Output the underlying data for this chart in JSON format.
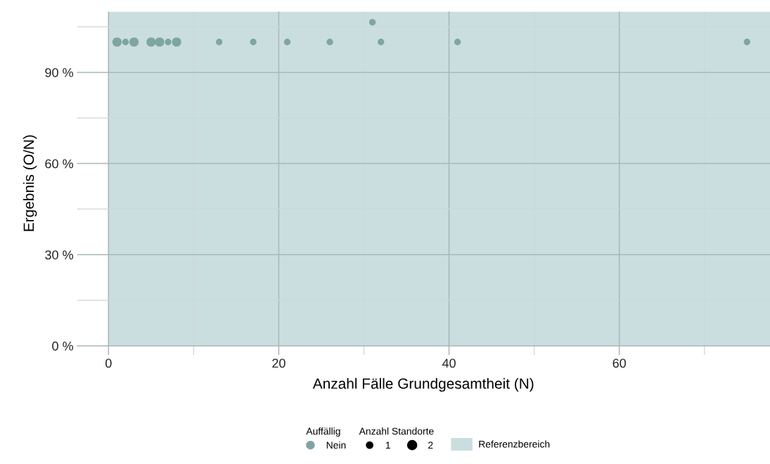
{
  "chart_data": {
    "type": "bubble",
    "xlabel": "Anzahl Fälle Grundgesamtheit (N)",
    "ylabel": "Ergebnis (O/N)",
    "legend_title": "Auffällig",
    "annotations": [
      "Anzahl Standorte"
    ],
    "series": [
      {
        "name": "Nein",
        "color": "#7fa5a3",
        "x": [
          1,
          2,
          3,
          5,
          6,
          7,
          8,
          13,
          17,
          21,
          26,
          31,
          32,
          41,
          75
        ],
        "values": [
          100,
          100,
          100,
          100,
          100,
          100,
          100,
          100,
          100,
          100,
          100,
          106.5,
          100,
          100,
          100
        ],
        "sizes": [
          2,
          1,
          2,
          2,
          2,
          1,
          2,
          1,
          1,
          1,
          1,
          1,
          1,
          1,
          1
        ]
      }
    ],
    "size_legend": [
      1,
      2
    ],
    "bands": [
      {
        "axis": "y",
        "from": 0,
        "to": 110,
        "label": "Referenzbereich",
        "color": "#cadee0"
      }
    ],
    "xlim": [
      -3.7,
      77.7
    ],
    "ylim": [
      -3,
      110
    ],
    "xticks": [
      0,
      20,
      40,
      60
    ],
    "yticks": [
      {
        "value": 0,
        "label": "0 %"
      },
      {
        "value": 30,
        "label": "30 %"
      },
      {
        "value": 60,
        "label": "60 %"
      },
      {
        "value": 90,
        "label": "90 %"
      }
    ],
    "grid": true,
    "legend": "bottom",
    "marker": "circle"
  }
}
